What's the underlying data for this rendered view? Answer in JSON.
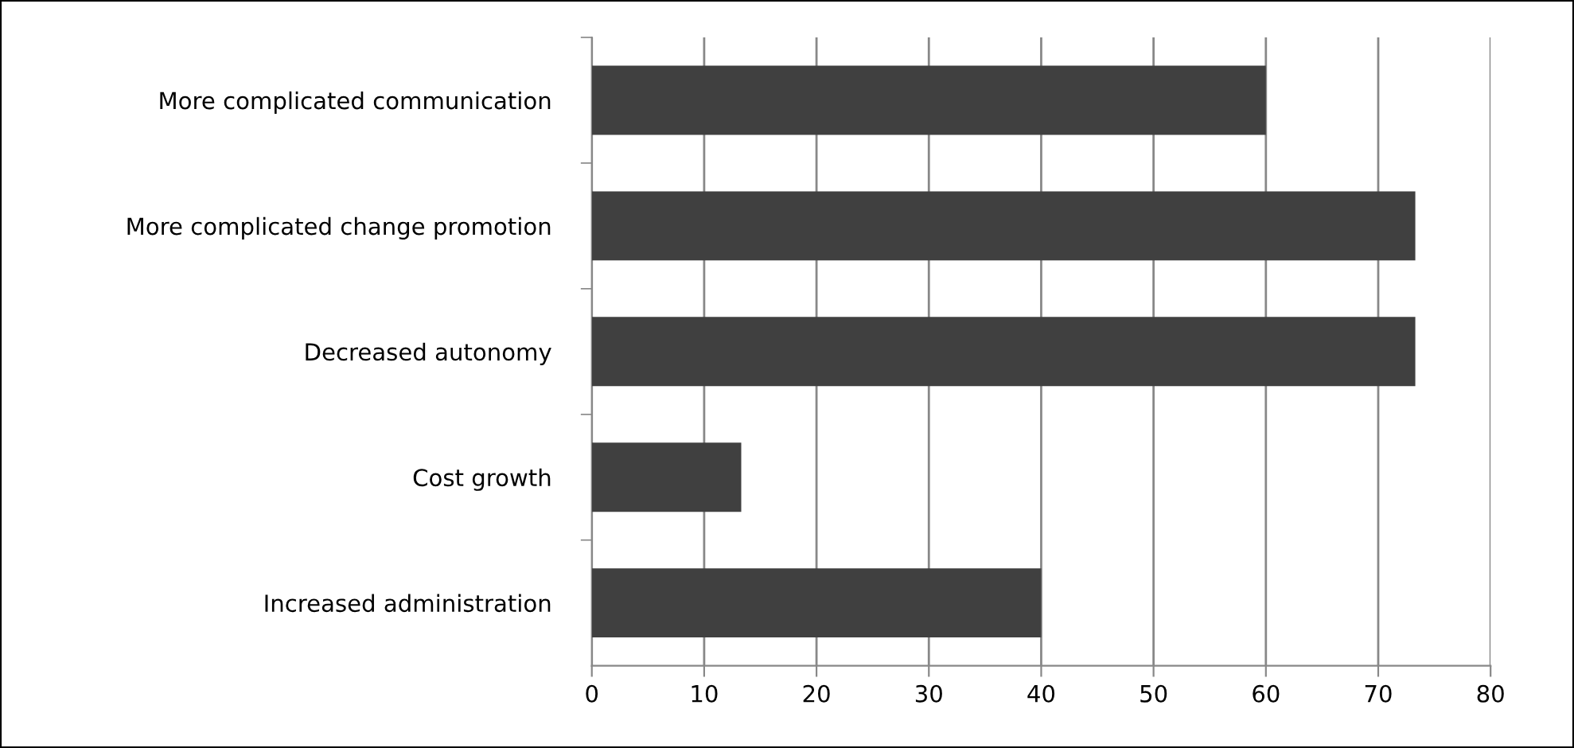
{
  "chart_data": {
    "type": "bar",
    "orientation": "horizontal",
    "categories": [
      "More complicated communication",
      "More complicated change promotion",
      "Decreased autonomy",
      "Cost growth",
      "Increased administration"
    ],
    "values": [
      60,
      73.3,
      73.3,
      13.3,
      40
    ],
    "color": "#404040",
    "xlim": [
      0,
      80
    ],
    "xticks": [
      0,
      10,
      20,
      30,
      40,
      50,
      60,
      70,
      80
    ],
    "grid": "x",
    "legend": false
  }
}
